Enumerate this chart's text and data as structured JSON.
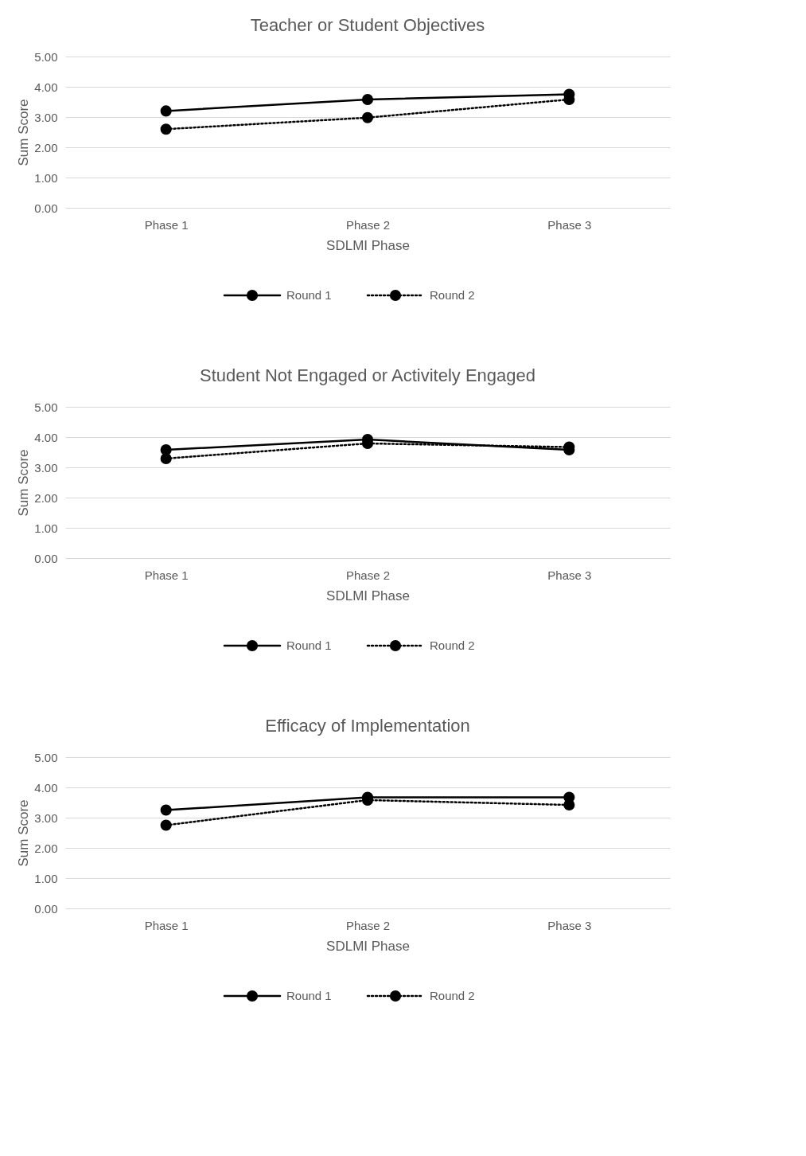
{
  "chart_data": [
    {
      "type": "line",
      "title": "Teacher or Student Objectives",
      "xlabel": "SDLMI Phase",
      "ylabel": "Sum Score",
      "categories": [
        "Phase 1",
        "Phase 2",
        "Phase 3"
      ],
      "ylim": [
        0,
        5
      ],
      "yticks": [
        {
          "value": 0,
          "label": "0.00"
        },
        {
          "value": 1,
          "label": "1.00"
        },
        {
          "value": 2,
          "label": "2.00"
        },
        {
          "value": 3,
          "label": "3.00"
        },
        {
          "value": 4,
          "label": "4.00"
        },
        {
          "value": 5,
          "label": "5.00"
        }
      ],
      "grid": "y",
      "legend": "bottom",
      "marker": "circle",
      "series": [
        {
          "name": "Round 1",
          "color": "#000000",
          "line_style": "solid",
          "values": [
            3.2,
            3.58,
            3.75
          ]
        },
        {
          "name": "Round 2",
          "color": "#000000",
          "line_style": "dotted",
          "values": [
            2.6,
            2.98,
            3.58
          ]
        }
      ]
    },
    {
      "type": "line",
      "title": "Student Not Engaged or Activitely Engaged",
      "xlabel": "SDLMI Phase",
      "ylabel": "Sum Score",
      "categories": [
        "Phase 1",
        "Phase 2",
        "Phase 3"
      ],
      "ylim": [
        0,
        5
      ],
      "yticks": [
        {
          "value": 0,
          "label": "0.00"
        },
        {
          "value": 1,
          "label": "1.00"
        },
        {
          "value": 2,
          "label": "2.00"
        },
        {
          "value": 3,
          "label": "3.00"
        },
        {
          "value": 4,
          "label": "4.00"
        },
        {
          "value": 5,
          "label": "5.00"
        }
      ],
      "grid": "y",
      "legend": "bottom",
      "marker": "circle",
      "series": [
        {
          "name": "Round 1",
          "color": "#000000",
          "line_style": "solid",
          "values": [
            3.58,
            3.92,
            3.58
          ]
        },
        {
          "name": "Round 2",
          "color": "#000000",
          "line_style": "dotted",
          "values": [
            3.29,
            3.79,
            3.67
          ]
        }
      ]
    },
    {
      "type": "line",
      "title": "Efficacy of Implementation",
      "xlabel": "SDLMI Phase",
      "ylabel": "Sum Score",
      "categories": [
        "Phase 1",
        "Phase 2",
        "Phase 3"
      ],
      "ylim": [
        0,
        5
      ],
      "yticks": [
        {
          "value": 0,
          "label": "0.00"
        },
        {
          "value": 1,
          "label": "1.00"
        },
        {
          "value": 2,
          "label": "2.00"
        },
        {
          "value": 3,
          "label": "3.00"
        },
        {
          "value": 4,
          "label": "4.00"
        },
        {
          "value": 5,
          "label": "5.00"
        }
      ],
      "grid": "y",
      "legend": "bottom",
      "marker": "circle",
      "series": [
        {
          "name": "Round 1",
          "color": "#000000",
          "line_style": "solid",
          "values": [
            3.25,
            3.67,
            3.67
          ]
        },
        {
          "name": "Round 2",
          "color": "#000000",
          "line_style": "dotted",
          "values": [
            2.75,
            3.58,
            3.42
          ]
        }
      ]
    }
  ]
}
